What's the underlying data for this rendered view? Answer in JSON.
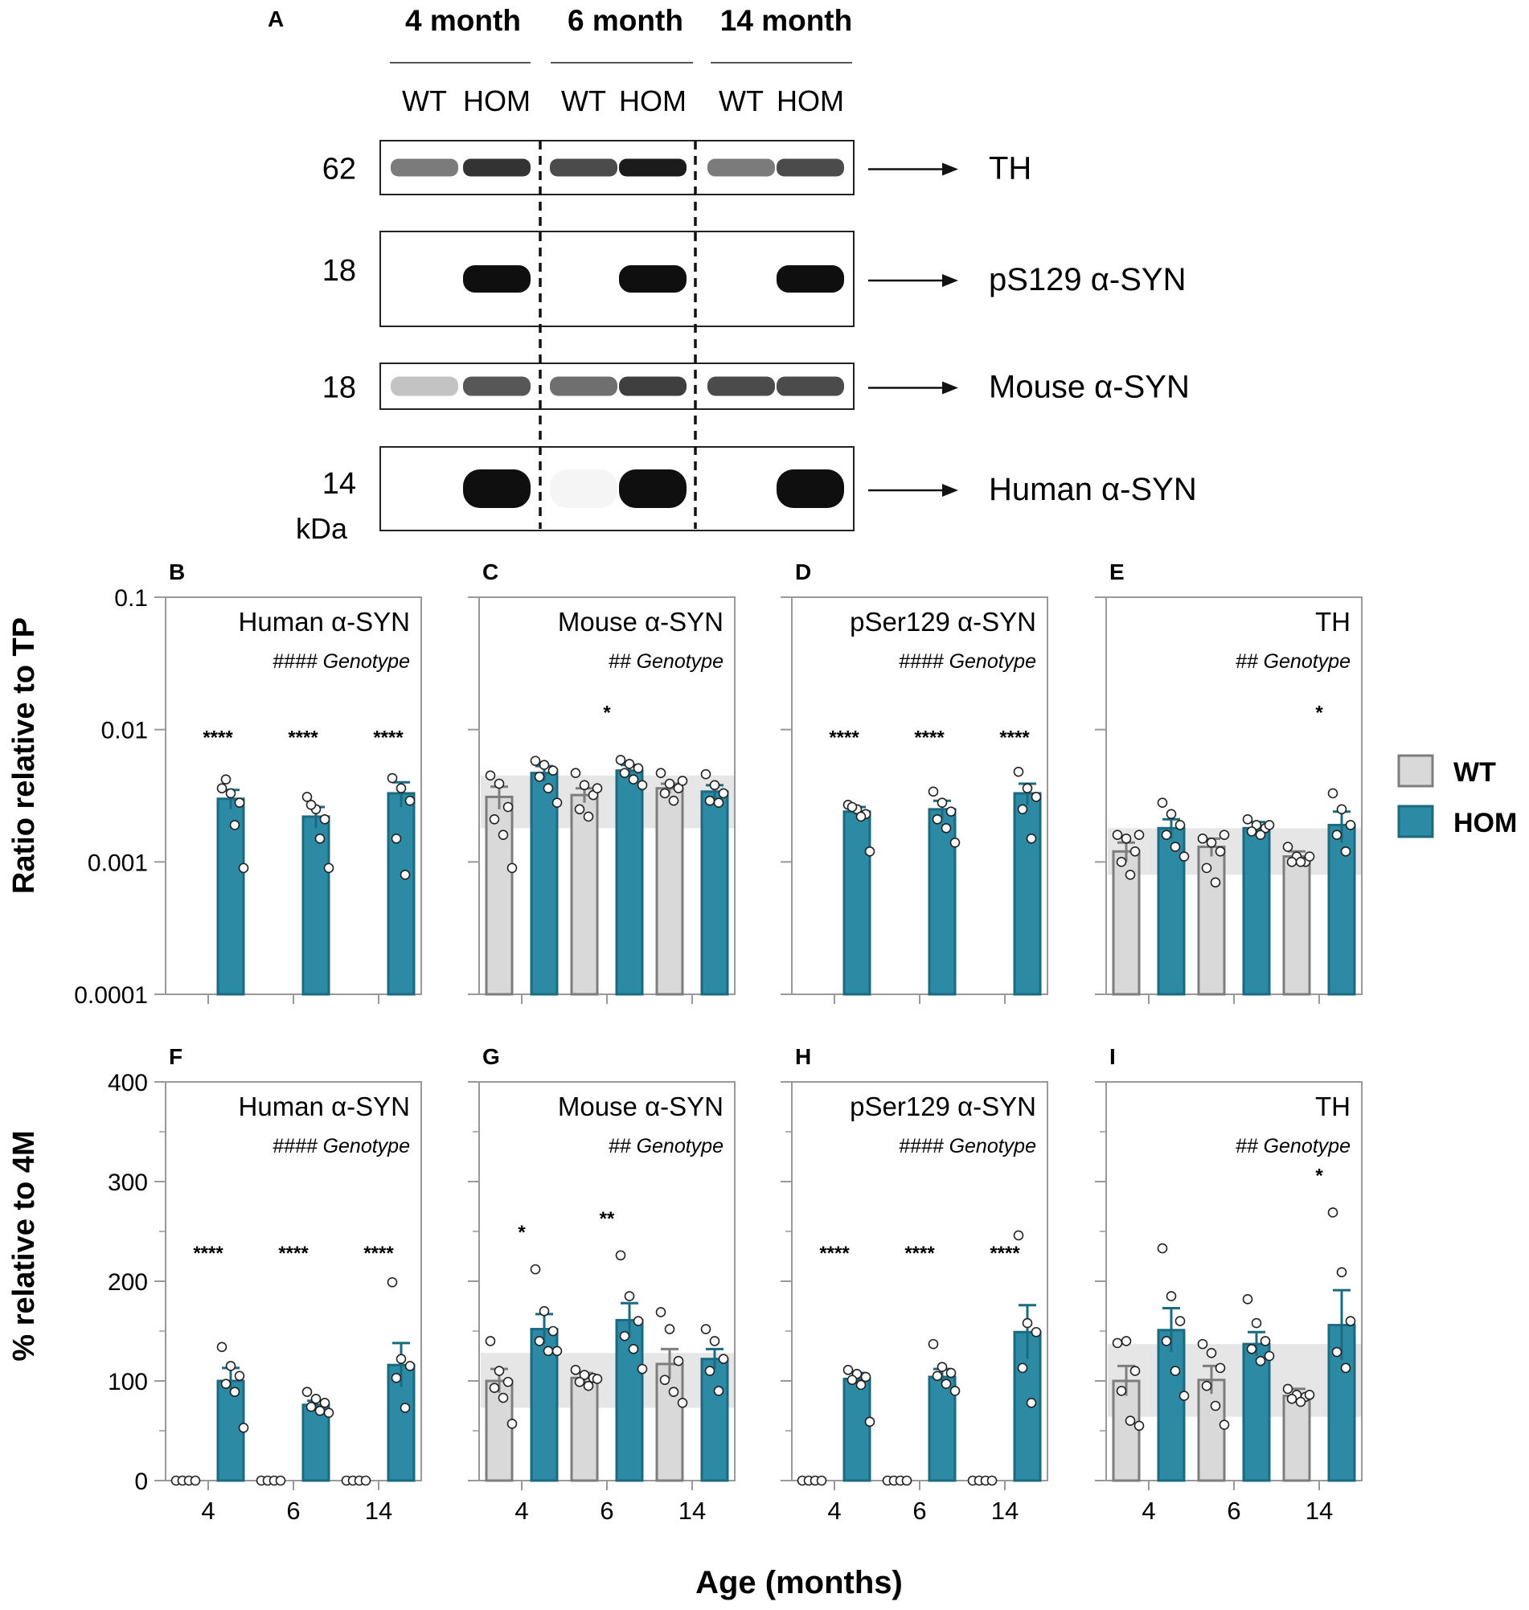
{
  "colors": {
    "wt_fill": "#d9d9d9",
    "wt_stroke": "#7d7d7d",
    "hom_fill": "#2c8aa5",
    "hom_stroke": "#1c6a80",
    "band": "#e6e6e6",
    "axis": "#999999"
  },
  "blot": {
    "panel_label": "A",
    "groups": [
      "4 month",
      "6 month",
      "14 month"
    ],
    "lane_labels": [
      "WT",
      "HOM",
      "WT",
      "HOM",
      "WT",
      "HOM"
    ],
    "rows": [
      {
        "mw": "62",
        "target": "TH",
        "intensity": [
          0.55,
          0.85,
          0.75,
          0.95,
          0.55,
          0.75
        ]
      },
      {
        "mw": "18",
        "target": "pS129 α-SYN",
        "intensity": [
          0.0,
          1.0,
          0.0,
          1.0,
          0.0,
          1.0
        ]
      },
      {
        "mw": "18",
        "target": "Mouse α-SYN",
        "intensity": [
          0.25,
          0.7,
          0.6,
          0.8,
          0.75,
          0.75
        ]
      },
      {
        "mw": "14",
        "target": "Human α-SYN",
        "intensity": [
          0.0,
          1.0,
          0.04,
          1.0,
          0.0,
          1.0
        ]
      }
    ],
    "kda": "kDa"
  },
  "legend": {
    "wt": "WT",
    "hom": "HOM"
  },
  "row_labels": {
    "top": "Ratio relative to TP",
    "bottom": "% relative to 4M"
  },
  "x_axis_label": "Age (months)",
  "top_ticks": [
    "0.1",
    "0.01",
    "0.001",
    "0.0001"
  ],
  "bottom_ticks": [
    "400",
    "300",
    "200",
    "100",
    "0"
  ],
  "chart_data": [
    {
      "panel": "B",
      "type": "bar",
      "title": "Human α-SYN",
      "stat": "#### Genotype",
      "scale": "log",
      "ylim": [
        0.0001,
        0.1
      ],
      "categories": [
        "4",
        "6",
        "14"
      ],
      "xlabel": "Age (months)",
      "ylabel": "Ratio relative to TP",
      "series": [
        {
          "name": "WT",
          "values": [
            null,
            null,
            null
          ],
          "sem": [
            0,
            0,
            0
          ],
          "points": [
            [],
            [],
            []
          ]
        },
        {
          "name": "HOM",
          "values": [
            0.003,
            0.0022,
            0.0033
          ],
          "sem": [
            0.0005,
            0.0004,
            0.0007
          ],
          "points": [
            [
              0.0036,
              0.0033,
              0.0028,
              0.0042,
              0.0019,
              0.0009
            ],
            [
              0.0031,
              0.0025,
              0.0021,
              0.0027,
              0.0015,
              0.0009
            ],
            [
              0.0043,
              0.0036,
              0.0029,
              0.0015,
              0.0008
            ]
          ]
        }
      ],
      "annotations": [
        "****",
        "****",
        "****"
      ],
      "band": null
    },
    {
      "panel": "C",
      "type": "bar",
      "title": "Mouse α-SYN",
      "stat": "## Genotype",
      "scale": "log",
      "ylim": [
        0.0001,
        0.1
      ],
      "categories": [
        "4",
        "6",
        "14"
      ],
      "xlabel": "Age (months)",
      "ylabel": "Ratio relative to TP",
      "series": [
        {
          "name": "WT",
          "values": [
            0.0031,
            0.0032,
            0.0036
          ],
          "sem": [
            0.0006,
            0.0004,
            0.0003
          ],
          "points": [
            [
              0.0045,
              0.0039,
              0.0026,
              0.0021,
              0.0016,
              0.0009
            ],
            [
              0.0047,
              0.0038,
              0.0032,
              0.0025,
              0.0022,
              0.0036
            ],
            [
              0.0047,
              0.0039,
              0.0036,
              0.0033,
              0.0029,
              0.0041
            ]
          ]
        },
        {
          "name": "HOM",
          "values": [
            0.0047,
            0.0049,
            0.0034
          ],
          "sem": [
            0.0006,
            0.0005,
            0.0004
          ],
          "points": [
            [
              0.0058,
              0.0054,
              0.0049,
              0.0044,
              0.0036,
              0.0028
            ],
            [
              0.0059,
              0.0055,
              0.0051,
              0.0047,
              0.0042,
              0.0038
            ],
            [
              0.0046,
              0.0038,
              0.0033,
              0.0029,
              0.0028
            ]
          ]
        }
      ],
      "annotations": [
        "",
        "*",
        ""
      ],
      "band": [
        0.0018,
        0.0045
      ]
    },
    {
      "panel": "D",
      "type": "bar",
      "title": "pSer129 α-SYN",
      "stat": "#### Genotype",
      "scale": "log",
      "ylim": [
        0.0001,
        0.1
      ],
      "categories": [
        "4",
        "6",
        "14"
      ],
      "xlabel": "Age (months)",
      "ylabel": "Ratio relative to TP",
      "series": [
        {
          "name": "WT",
          "values": [
            null,
            null,
            null
          ],
          "sem": [
            0,
            0,
            0
          ],
          "points": [
            [],
            [],
            []
          ]
        },
        {
          "name": "HOM",
          "values": [
            0.0024,
            0.0025,
            0.0033
          ],
          "sem": [
            0.0002,
            0.0004,
            0.0006
          ],
          "points": [
            [
              0.0027,
              0.0025,
              0.0023,
              0.0026,
              0.0022,
              0.0012
            ],
            [
              0.0034,
              0.0028,
              0.0024,
              0.0021,
              0.0018,
              0.0014
            ],
            [
              0.0048,
              0.0036,
              0.0031,
              0.0025,
              0.0015
            ]
          ]
        }
      ],
      "annotations": [
        "****",
        "****",
        "****"
      ],
      "band": null
    },
    {
      "panel": "E",
      "type": "bar",
      "title": "TH",
      "stat": "## Genotype",
      "scale": "log",
      "ylim": [
        0.0001,
        0.1
      ],
      "categories": [
        "4",
        "6",
        "14"
      ],
      "xlabel": "Age (months)",
      "ylabel": "Ratio relative to TP",
      "series": [
        {
          "name": "WT",
          "values": [
            0.0012,
            0.0013,
            0.0011
          ],
          "sem": [
            0.0002,
            0.0002,
            0.0001
          ],
          "points": [
            [
              0.0016,
              0.0015,
              0.0012,
              0.001,
              0.0008,
              0.0016
            ],
            [
              0.0015,
              0.0014,
              0.0012,
              0.0009,
              0.0007,
              0.0016
            ],
            [
              0.0013,
              0.0011,
              0.001,
              0.001,
              0.001,
              0.0011
            ]
          ]
        },
        {
          "name": "HOM",
          "values": [
            0.0018,
            0.0018,
            0.0019
          ],
          "sem": [
            0.0003,
            0.0002,
            0.0005
          ],
          "points": [
            [
              0.0028,
              0.0023,
              0.0019,
              0.0016,
              0.0013,
              0.0011
            ],
            [
              0.0021,
              0.0019,
              0.0018,
              0.0017,
              0.0016,
              0.0019
            ],
            [
              0.0033,
              0.0025,
              0.0019,
              0.0016,
              0.0012
            ]
          ]
        }
      ],
      "annotations": [
        "",
        "",
        "*"
      ],
      "band": [
        0.0008,
        0.0018
      ]
    },
    {
      "panel": "F",
      "type": "bar",
      "title": "Human α-SYN",
      "stat": "#### Genotype",
      "scale": "linear",
      "ylim": [
        0,
        400
      ],
      "categories": [
        "4",
        "6",
        "14"
      ],
      "xlabel": "Age (months)",
      "ylabel": "% relative to 4M",
      "series": [
        {
          "name": "WT",
          "values": [
            0,
            0,
            0
          ],
          "sem": [
            0,
            0,
            0
          ],
          "points": [
            [
              0,
              0,
              0,
              0
            ],
            [
              0,
              0,
              0,
              0
            ],
            [
              0,
              0,
              0,
              0
            ]
          ]
        },
        {
          "name": "HOM",
          "values": [
            100,
            76,
            116
          ],
          "sem": [
            13,
            4,
            22
          ],
          "points": [
            [
              134,
              115,
              105,
              97,
              89,
              53
            ],
            [
              89,
              82,
              78,
              74,
              70,
              68
            ],
            [
              199,
              122,
              115,
              103,
              73
            ]
          ]
        }
      ],
      "annotations": [
        "****",
        "****",
        "****"
      ],
      "band": null
    },
    {
      "panel": "G",
      "type": "bar",
      "title": "Mouse α-SYN",
      "stat": "## Genotype",
      "scale": "linear",
      "ylim": [
        0,
        400
      ],
      "categories": [
        "4",
        "6",
        "14"
      ],
      "xlabel": "Age (months)",
      "ylabel": "% relative to 4M",
      "series": [
        {
          "name": "WT",
          "values": [
            100,
            103,
            117
          ],
          "sem": [
            12,
            5,
            15
          ],
          "points": [
            [
              140,
              110,
              99,
              93,
              83,
              57
            ],
            [
              111,
              106,
              103,
              99,
              95,
              102
            ],
            [
              169,
              152,
              120,
              101,
              89,
              78
            ]
          ]
        },
        {
          "name": "HOM",
          "values": [
            152,
            161,
            122
          ],
          "sem": [
            15,
            17,
            10
          ],
          "points": [
            [
              212,
              170,
              150,
              140,
              130,
              130
            ],
            [
              226,
              185,
              160,
              145,
              132,
              112
            ],
            [
              152,
              140,
              122,
              110,
              90
            ]
          ]
        }
      ],
      "annotations": [
        "*",
        "**",
        ""
      ],
      "band": [
        73,
        128
      ]
    },
    {
      "panel": "H",
      "type": "bar",
      "title": "pSer129 α-SYN",
      "stat": "#### Genotype",
      "scale": "linear",
      "ylim": [
        0,
        400
      ],
      "categories": [
        "4",
        "6",
        "14"
      ],
      "xlabel": "Age (months)",
      "ylabel": "% relative to 4M",
      "series": [
        {
          "name": "WT",
          "values": [
            0,
            0,
            0
          ],
          "sem": [
            0,
            0,
            0
          ],
          "points": [
            [
              0,
              0,
              0,
              0
            ],
            [
              0,
              0,
              0,
              0
            ],
            [
              0,
              0,
              0,
              0
            ]
          ]
        },
        {
          "name": "HOM",
          "values": [
            102,
            104,
            149
          ],
          "sem": [
            6,
            8,
            27
          ],
          "points": [
            [
              111,
              107,
              104,
              101,
              96,
              59
            ],
            [
              137,
              114,
              108,
              105,
              97,
              90
            ],
            [
              246,
              158,
              149,
              113,
              78
            ]
          ]
        }
      ],
      "annotations": [
        "****",
        "****",
        "****"
      ],
      "band": null
    },
    {
      "panel": "I",
      "type": "bar",
      "title": "TH",
      "stat": "## Genotype",
      "scale": "linear",
      "ylim": [
        0,
        400
      ],
      "categories": [
        "4",
        "6",
        "14"
      ],
      "xlabel": "Age (months)",
      "ylabel": "% relative to 4M",
      "series": [
        {
          "name": "WT",
          "values": [
            100,
            101,
            85
          ],
          "sem": [
            15,
            14,
            7
          ],
          "points": [
            [
              138,
              140,
              110,
              90,
              60,
              55
            ],
            [
              137,
              128,
              113,
              95,
              75,
              56
            ],
            [
              92,
              86,
              84,
              82,
              79,
              86
            ]
          ]
        },
        {
          "name": "HOM",
          "values": [
            151,
            137,
            156
          ],
          "sem": [
            22,
            12,
            35
          ],
          "points": [
            [
              233,
              185,
              160,
              140,
              110,
              85
            ],
            [
              182,
              158,
              140,
              132,
              120,
              125
            ],
            [
              269,
              209,
              160,
              129,
              113
            ]
          ]
        }
      ],
      "annotations": [
        "",
        "",
        "*"
      ],
      "band": [
        64,
        137
      ]
    }
  ]
}
